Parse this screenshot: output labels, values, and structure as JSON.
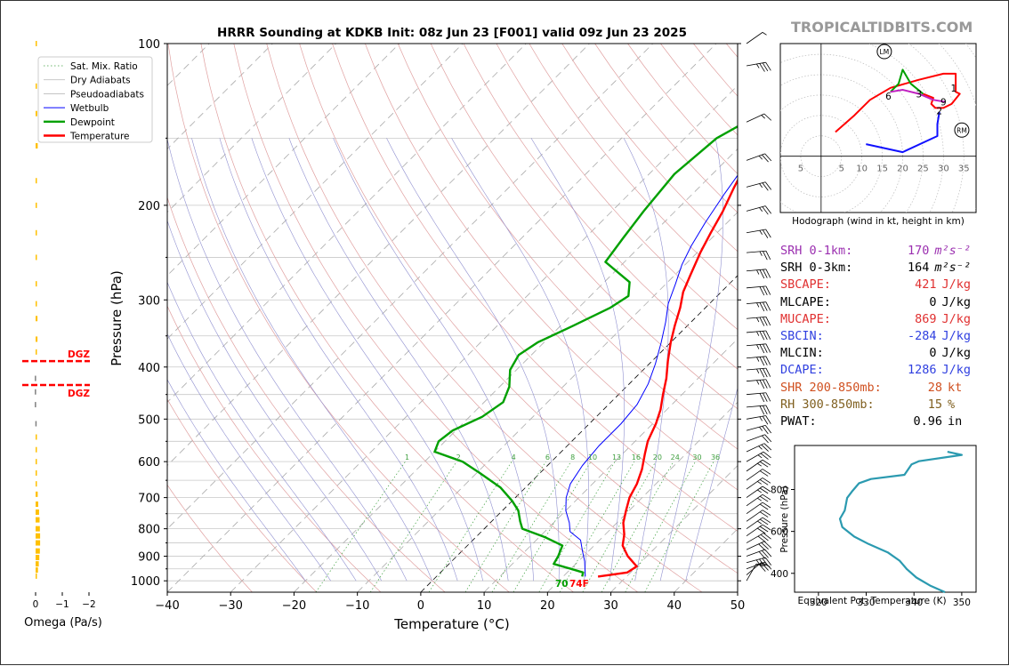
{
  "header": {
    "title": "HRRR Sounding at KDKB Init: 08z Jun 23 [F001] valid 09z Jun 23 2025",
    "brand": "TROPICALTIDBITS.COM"
  },
  "colors": {
    "temperature": "#ff0000",
    "dewpoint": "#00a000",
    "wetbulb": "#0000ff",
    "dry_adiabat": "#e0a0a0",
    "pseudoadiabat": "#9090d0",
    "mixing_ratio": "#40a040",
    "isotherm": "#999999",
    "dgz": "#ff0000",
    "omega_bar": "#ffc000",
    "theta_e": "#2b9ab0",
    "srh01": "#9b30b0",
    "sb": "#e03030",
    "dcape": "#3040e0",
    "shear": "#d05020",
    "rh": "#806020",
    "brand": "#999999"
  },
  "chart_data": [
    {
      "type": "line",
      "name": "skewt",
      "xlabel": "Temperature (°C)",
      "ylabel": "Pressure (hPa)",
      "xlim": [
        -40,
        50
      ],
      "ylim": [
        1050,
        100
      ],
      "y_scale": "log",
      "x_ticks": [
        -40,
        -30,
        -20,
        -10,
        0,
        10,
        20,
        30,
        40,
        50
      ],
      "y_ticks": [
        1000,
        900,
        800,
        700,
        600,
        500,
        400,
        300,
        200,
        100
      ],
      "legend": {
        "position": "top-left",
        "entries": [
          "Sat. Mix. Ratio",
          "Dry Adiabats",
          "Pseudoadiabats",
          "Wetbulb",
          "Dewpoint",
          "Temperature"
        ]
      },
      "mixing_ratio_labels": [
        "1",
        "2",
        "4",
        "6",
        "8",
        "10",
        "13",
        "16",
        "20",
        "24",
        "30",
        "36"
      ],
      "surface_labels": {
        "dewpoint_f": "70",
        "temperature_f": "74F"
      },
      "series": [
        {
          "name": "Temperature",
          "points": [
            [
              25.5,
              982
            ],
            [
              29.5,
              965
            ],
            [
              30.0,
              940
            ],
            [
              27.0,
              900
            ],
            [
              24.5,
              860
            ],
            [
              23.0,
              820
            ],
            [
              21.0,
              780
            ],
            [
              19.5,
              740
            ],
            [
              18.0,
              700
            ],
            [
              17.0,
              660
            ],
            [
              15.5,
              620
            ],
            [
              13.5,
              580
            ],
            [
              12.0,
              550
            ],
            [
              10.5,
              510
            ],
            [
              9.0,
              480
            ],
            [
              7.0,
              450
            ],
            [
              5.0,
              420
            ],
            [
              2.5,
              390
            ],
            [
              0,
              360
            ],
            [
              -2.0,
              335
            ],
            [
              -4.0,
              310
            ],
            [
              -6.0,
              290
            ],
            [
              -7.5,
              270
            ],
            [
              -9.5,
              245
            ],
            [
              -11.0,
              225
            ],
            [
              -12.5,
              205
            ],
            [
              -14.5,
              185
            ],
            [
              -16.5,
              165
            ],
            [
              -18.5,
              148
            ],
            [
              -20.5,
              132
            ],
            [
              -21.0,
              115
            ],
            [
              -18.0,
              105
            ],
            [
              -15.5,
              100
            ]
          ]
        },
        {
          "name": "Dewpoint",
          "points": [
            [
              23.0,
              982
            ],
            [
              22.5,
              965
            ],
            [
              20.0,
              950
            ],
            [
              16.5,
              930
            ],
            [
              16.0,
              900
            ],
            [
              15.0,
              860
            ],
            [
              11.0,
              830
            ],
            [
              6.0,
              800
            ],
            [
              4.5,
              775
            ],
            [
              2.5,
              740
            ],
            [
              0,
              710
            ],
            [
              -4.0,
              670
            ],
            [
              -9.5,
              630
            ],
            [
              -14.0,
              600
            ],
            [
              -20.0,
              575
            ],
            [
              -21.0,
              550
            ],
            [
              -20.5,
              525
            ],
            [
              -18.0,
              495
            ],
            [
              -17.0,
              465
            ],
            [
              -18.5,
              435
            ],
            [
              -21.0,
              405
            ],
            [
              -22.0,
              380
            ],
            [
              -21.0,
              360
            ],
            [
              -18.0,
              335
            ],
            [
              -15.0,
              310
            ],
            [
              -14.0,
              295
            ],
            [
              -16.0,
              278
            ],
            [
              -23.0,
              255
            ],
            [
              -24.0,
              230
            ],
            [
              -25.0,
              205
            ],
            [
              -26.0,
              175
            ],
            [
              -25.0,
              150
            ],
            [
              -19.0,
              122
            ],
            [
              -12.0,
              100
            ]
          ]
        },
        {
          "name": "Wetbulb",
          "points": [
            [
              23.5,
              982
            ],
            [
              21.0,
              920
            ],
            [
              19.0,
              880
            ],
            [
              17.0,
              840
            ],
            [
              14.0,
              810
            ],
            [
              12.5,
              780
            ],
            [
              10.0,
              740
            ],
            [
              8.0,
              700
            ],
            [
              6.5,
              660
            ],
            [
              5.5,
              610
            ],
            [
              5.0,
              560
            ],
            [
              5.0,
              510
            ],
            [
              4.5,
              470
            ],
            [
              3.0,
              430
            ],
            [
              1.0,
              395
            ],
            [
              -1.5,
              360
            ],
            [
              -4.0,
              330
            ],
            [
              -6.5,
              305
            ],
            [
              -8.5,
              280
            ],
            [
              -10.5,
              258
            ],
            [
              -12.0,
              238
            ],
            [
              -13.5,
              215
            ],
            [
              -15.0,
              190
            ],
            [
              -16.5,
              165
            ]
          ]
        }
      ]
    },
    {
      "type": "bar",
      "name": "omega",
      "xlabel": "Omega (Pa/s)",
      "x_ticks": [
        "0",
        "−1",
        "−2"
      ],
      "dgz": {
        "label_top": "DGZ",
        "label_bottom": "DGZ",
        "pressure_top": 390,
        "pressure_bottom": 432
      },
      "values": [
        {
          "p": 100,
          "w": -0.01
        },
        {
          "p": 120,
          "w": -0.05
        },
        {
          "p": 135,
          "w": -0.06
        },
        {
          "p": 155,
          "w": -0.08
        },
        {
          "p": 180,
          "w": -0.02
        },
        {
          "p": 200,
          "w": -0.04
        },
        {
          "p": 225,
          "w": -0.03
        },
        {
          "p": 250,
          "w": -0.02
        },
        {
          "p": 280,
          "w": -0.05
        },
        {
          "p": 305,
          "w": -0.05
        },
        {
          "p": 325,
          "w": -0.07
        },
        {
          "p": 355,
          "w": -0.07
        },
        {
          "p": 375,
          "w": -0.04
        },
        {
          "p": 420,
          "w": 0.03
        },
        {
          "p": 445,
          "w": 0.03
        },
        {
          "p": 470,
          "w": 0.03
        },
        {
          "p": 510,
          "w": 0.01
        },
        {
          "p": 540,
          "w": -0.01
        },
        {
          "p": 570,
          "w": -0.03
        },
        {
          "p": 600,
          "w": -0.04
        },
        {
          "p": 630,
          "w": -0.04
        },
        {
          "p": 660,
          "w": -0.05
        },
        {
          "p": 690,
          "w": -0.08
        },
        {
          "p": 720,
          "w": -0.1
        },
        {
          "p": 745,
          "w": -0.13
        },
        {
          "p": 770,
          "w": -0.15
        },
        {
          "p": 800,
          "w": -0.16
        },
        {
          "p": 825,
          "w": -0.17
        },
        {
          "p": 850,
          "w": -0.17
        },
        {
          "p": 880,
          "w": -0.16
        },
        {
          "p": 905,
          "w": -0.14
        },
        {
          "p": 930,
          "w": -0.12
        },
        {
          "p": 955,
          "w": -0.09
        },
        {
          "p": 980,
          "w": -0.05
        }
      ]
    },
    {
      "type": "line",
      "name": "hodograph",
      "xlabel": "Hodograph (wind in kt, height in km)",
      "xlim": [
        -10,
        38
      ],
      "ylim": [
        -14,
        28
      ],
      "ring_labels": [
        "5",
        "5",
        "10",
        "15",
        "20",
        "25",
        "30",
        "35"
      ],
      "height_labels": [
        {
          "label": "1",
          "u": 32.5,
          "v": 17.0
        },
        {
          "label": "2",
          "u": 29.0,
          "v": 11.3
        },
        {
          "label": "3",
          "u": 24.0,
          "v": 15.5
        },
        {
          "label": "6",
          "u": 16.5,
          "v": 15.0
        },
        {
          "label": "9",
          "u": 30.0,
          "v": 13.5
        }
      ],
      "markers": [
        {
          "label": "LM",
          "u": 15.5,
          "v": 26.0
        },
        {
          "label": "RM",
          "u": 34.5,
          "v": 6.5
        }
      ],
      "segments": [
        {
          "color": "red",
          "points": [
            [
              3.5,
              6
            ],
            [
              8,
              10
            ],
            [
              12,
              14
            ],
            [
              17,
              17
            ],
            [
              24,
              19
            ],
            [
              30,
              20.5
            ],
            [
              33,
              20.5
            ],
            [
              33,
              16
            ],
            [
              34,
              15.5
            ],
            [
              32,
              13
            ],
            [
              30,
              12
            ],
            [
              28,
              12
            ],
            [
              27,
              13
            ],
            [
              27.5,
              14.5
            ],
            [
              25,
              15.5
            ]
          ]
        },
        {
          "color": "green",
          "points": [
            [
              25,
              15.5
            ],
            [
              22,
              18
            ],
            [
              20,
              21.5
            ],
            [
              19,
              18
            ],
            [
              17,
              16
            ]
          ]
        },
        {
          "color": "magenta",
          "points": [
            [
              17,
              16
            ],
            [
              20,
              16.5
            ],
            [
              24,
              15.5
            ],
            [
              27.5,
              14
            ],
            [
              30.5,
              13.5
            ]
          ]
        },
        {
          "color": "blue",
          "points": [
            [
              29,
              11
            ],
            [
              28.5,
              8
            ],
            [
              28.5,
              5
            ],
            [
              20,
              1
            ],
            [
              11,
              3
            ]
          ]
        }
      ]
    },
    {
      "type": "line",
      "name": "theta_e",
      "xlabel": "Equivalent Pot. Temperature (K)",
      "ylabel": "Pressure (hPa)",
      "xlim": [
        315,
        353
      ],
      "ylim": [
        1010,
        310
      ],
      "x_ticks": [
        320,
        330,
        340,
        350
      ],
      "y_ticks": [
        400,
        600,
        800
      ],
      "series": [
        {
          "name": "theta-e",
          "points": [
            [
              347.0,
              980
            ],
            [
              350.0,
              965
            ],
            [
              341.0,
              935
            ],
            [
              339.5,
              920
            ],
            [
              338.0,
              870
            ],
            [
              331.0,
              850
            ],
            [
              328.5,
              830
            ],
            [
              327.0,
              790
            ],
            [
              326.0,
              760
            ],
            [
              325.5,
              700
            ],
            [
              324.5,
              660
            ],
            [
              325.0,
              620
            ],
            [
              327.5,
              575
            ],
            [
              330.5,
              540
            ],
            [
              334.5,
              500
            ],
            [
              337.0,
              460
            ],
            [
              338.5,
              420
            ],
            [
              340.5,
              380
            ],
            [
              343.5,
              340
            ],
            [
              346.5,
              310
            ]
          ]
        }
      ]
    }
  ],
  "wind_barbs": [
    {
      "p": 100,
      "dir": 235,
      "kt": 5
    },
    {
      "p": 110,
      "dir": 260,
      "kt": 35
    },
    {
      "p": 140,
      "dir": 245,
      "kt": 15
    },
    {
      "p": 165,
      "dir": 250,
      "kt": 25
    },
    {
      "p": 185,
      "dir": 255,
      "kt": 25
    },
    {
      "p": 205,
      "dir": 255,
      "kt": 25
    },
    {
      "p": 225,
      "dir": 260,
      "kt": 25
    },
    {
      "p": 245,
      "dir": 265,
      "kt": 25
    },
    {
      "p": 265,
      "dir": 265,
      "kt": 35
    },
    {
      "p": 285,
      "dir": 265,
      "kt": 30
    },
    {
      "p": 305,
      "dir": 265,
      "kt": 35
    },
    {
      "p": 325,
      "dir": 265,
      "kt": 35
    },
    {
      "p": 345,
      "dir": 265,
      "kt": 35
    },
    {
      "p": 365,
      "dir": 265,
      "kt": 35
    },
    {
      "p": 385,
      "dir": 265,
      "kt": 35
    },
    {
      "p": 405,
      "dir": 265,
      "kt": 35
    },
    {
      "p": 425,
      "dir": 265,
      "kt": 35
    },
    {
      "p": 450,
      "dir": 265,
      "kt": 30
    },
    {
      "p": 475,
      "dir": 265,
      "kt": 30
    },
    {
      "p": 500,
      "dir": 260,
      "kt": 25
    },
    {
      "p": 525,
      "dir": 255,
      "kt": 25
    },
    {
      "p": 550,
      "dir": 250,
      "kt": 20
    },
    {
      "p": 575,
      "dir": 245,
      "kt": 25
    },
    {
      "p": 600,
      "dir": 240,
      "kt": 25
    },
    {
      "p": 625,
      "dir": 235,
      "kt": 25
    },
    {
      "p": 650,
      "dir": 235,
      "kt": 20
    },
    {
      "p": 675,
      "dir": 235,
      "kt": 25
    },
    {
      "p": 700,
      "dir": 235,
      "kt": 25
    },
    {
      "p": 725,
      "dir": 235,
      "kt": 25
    },
    {
      "p": 750,
      "dir": 235,
      "kt": 20
    },
    {
      "p": 775,
      "dir": 235,
      "kt": 20
    },
    {
      "p": 800,
      "dir": 235,
      "kt": 25
    },
    {
      "p": 825,
      "dir": 235,
      "kt": 30
    },
    {
      "p": 850,
      "dir": 240,
      "kt": 30
    },
    {
      "p": 875,
      "dir": 245,
      "kt": 30
    },
    {
      "p": 900,
      "dir": 250,
      "kt": 30
    },
    {
      "p": 925,
      "dir": 255,
      "kt": 35
    },
    {
      "p": 950,
      "dir": 250,
      "kt": 30
    },
    {
      "p": 975,
      "dir": 230,
      "kt": 15
    },
    {
      "p": 1000,
      "dir": 210,
      "kt": 10
    }
  ],
  "parameters": [
    {
      "label": "SRH 0-1km:",
      "value": "170",
      "unit_html": "m²s⁻²",
      "color": "#9b30b0",
      "unit_italic": true
    },
    {
      "label": "SRH 0-3km:",
      "value": "164",
      "unit_html": "m²s⁻²",
      "color": "#000000",
      "unit_italic": true
    },
    {
      "label": "SBCAPE:",
      "value": "421",
      "unit_html": "J/kg",
      "color": "#e03030"
    },
    {
      "label": "MLCAPE:",
      "value": "0",
      "unit_html": "J/kg",
      "color": "#000000"
    },
    {
      "label": "MUCAPE:",
      "value": "869",
      "unit_html": "J/kg",
      "color": "#e03030"
    },
    {
      "label": "SBCIN:",
      "value": "-284",
      "unit_html": "J/kg",
      "color": "#3040e0"
    },
    {
      "label": "MLCIN:",
      "value": "0",
      "unit_html": "J/kg",
      "color": "#000000"
    },
    {
      "label": "DCAPE:",
      "value": "1286",
      "unit_html": "J/kg",
      "color": "#3040e0"
    },
    {
      "label": "SHR 200-850mb:",
      "value": "28",
      "unit_html": "kt",
      "color": "#d05020"
    },
    {
      "label": "RH 300-850mb:",
      "value": "15",
      "unit_html": "%",
      "color": "#806020"
    },
    {
      "label": "PWAT:",
      "value": "0.96",
      "unit_html": "in",
      "color": "#000000"
    }
  ]
}
